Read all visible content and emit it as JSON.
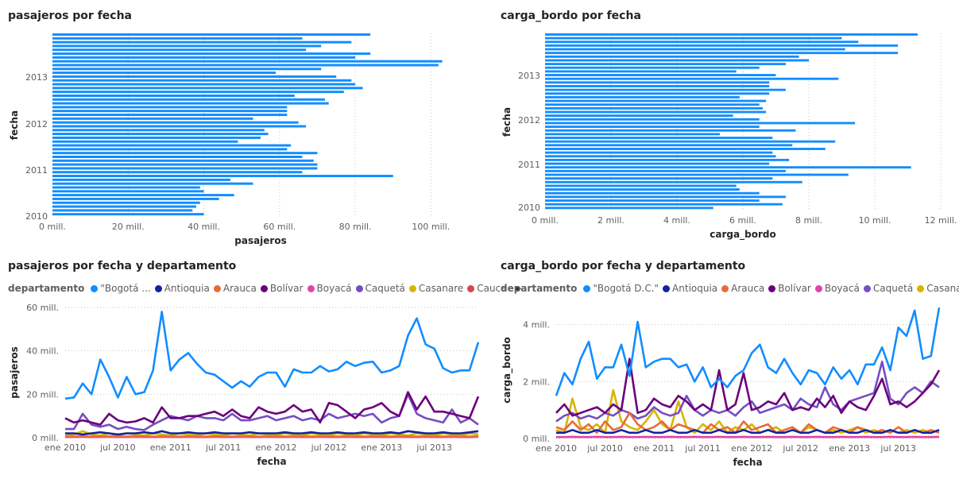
{
  "chart_data": [
    {
      "type": "bar",
      "title": "pasajeros por fecha",
      "xlabel": "pasajeros",
      "ylabel": "fecha",
      "xlim": [
        0,
        110
      ],
      "x_ticks": [
        0,
        20,
        40,
        60,
        80,
        100
      ],
      "x_tick_labels": [
        "0 mill.",
        "20 mill.",
        "40 mill.",
        "60 mill.",
        "80 mill.",
        "100 mill."
      ],
      "y_tick_labels": [
        "2013",
        "2012",
        "2011",
        "2010"
      ],
      "grid": true,
      "values": [
        84,
        66,
        79,
        71,
        67,
        84,
        80,
        103,
        102,
        71,
        59,
        75,
        79,
        80,
        82,
        77,
        64,
        72,
        73,
        62,
        62,
        62,
        53,
        65,
        67,
        56,
        57,
        55,
        49,
        63,
        62,
        70,
        66,
        69,
        70,
        70,
        66,
        90,
        47,
        53,
        39,
        40,
        48,
        44,
        39,
        38,
        37,
        40
      ]
    },
    {
      "type": "bar",
      "title": "carga_bordo por fecha",
      "xlabel": "carga_bordo",
      "ylabel": "fecha",
      "xlim": [
        0,
        12
      ],
      "x_ticks": [
        0,
        2,
        4,
        6,
        8,
        10,
        12
      ],
      "x_tick_labels": [
        "0 mill.",
        "2 mill.",
        "4 mill.",
        "6 mill.",
        "8 mill.",
        "10 mill.",
        "12 mill."
      ],
      "y_tick_labels": [
        "2013",
        "2012",
        "2011",
        "2010"
      ],
      "grid": true,
      "values": [
        11.3,
        9.0,
        9.5,
        10.7,
        9.1,
        10.7,
        7.7,
        8.0,
        7.3,
        6.5,
        5.8,
        7.0,
        8.9,
        6.8,
        6.8,
        7.3,
        6.8,
        5.9,
        6.7,
        6.5,
        6.6,
        6.7,
        5.7,
        6.5,
        9.4,
        6.5,
        7.6,
        5.3,
        6.9,
        8.8,
        7.5,
        8.5,
        6.9,
        7.0,
        7.4,
        6.8,
        11.1,
        7.3,
        9.2,
        6.9,
        7.8,
        5.8,
        5.9,
        6.5,
        7.3,
        6.5,
        7.2,
        5.1
      ]
    },
    {
      "type": "line",
      "title": "pasajeros por fecha y departamento",
      "xlabel": "fecha",
      "ylabel": "pasajeros",
      "ylim": [
        0,
        60
      ],
      "y_ticks": [
        0,
        20,
        40,
        60
      ],
      "y_tick_labels": [
        "0 mill.",
        "20 mill.",
        "40 mill.",
        "60 mill."
      ],
      "x_tick_labels": [
        "ene 2010",
        "jul 2010",
        "ene 2011",
        "jul 2011",
        "ene 2012",
        "jul 2012",
        "ene 2013",
        "jul 2013"
      ],
      "legend_title": "departamento",
      "legend_items": [
        "\"Bogotá ...",
        "Antioquia",
        "Arauca",
        "Bolívar",
        "Boyacá",
        "Caquetá",
        "Casanare",
        "Cauca"
      ],
      "series": [
        {
          "name": "\"Bogotá D.C.\"",
          "color": "#118DFF",
          "values": [
            18,
            18.5,
            25,
            20,
            36,
            28,
            18.5,
            28,
            20,
            21,
            31,
            58,
            31,
            36,
            39,
            34,
            30,
            29,
            26,
            23,
            26,
            23.5,
            28,
            30,
            30,
            23.5,
            31.5,
            30,
            30,
            33,
            30.5,
            31.5,
            35,
            33,
            34.5,
            35,
            30,
            31,
            33,
            47,
            55,
            43,
            41,
            32,
            30,
            31,
            31,
            44
          ]
        },
        {
          "name": "Antioquia",
          "color": "#12239E",
          "values": [
            2,
            2,
            1.5,
            2,
            2.5,
            2,
            1.5,
            2,
            2,
            2.5,
            2,
            3,
            2,
            2,
            2.5,
            2,
            2,
            2.5,
            2,
            2,
            2,
            2.5,
            2,
            2,
            2,
            2.5,
            2,
            2,
            2.5,
            2,
            2,
            2.5,
            2,
            2,
            2.5,
            2,
            2,
            2.5,
            2,
            3,
            2.5,
            2,
            2,
            2.5,
            2,
            2,
            2.5,
            3
          ]
        },
        {
          "name": "Arauca",
          "color": "#E66C37",
          "values": [
            0.5,
            0.5,
            0.6,
            0.5,
            0.5,
            0.6,
            0.5,
            0.5,
            0.6,
            0.5,
            0.5,
            0.6,
            0.5,
            0.5,
            0.6,
            0.5,
            0.5,
            0.6,
            0.5,
            0.5,
            0.6,
            0.5,
            0.5,
            0.6,
            0.5,
            0.5,
            0.6,
            0.5,
            0.5,
            0.6,
            0.5,
            0.5,
            0.6,
            0.5,
            0.5,
            0.6,
            0.5,
            0.5,
            0.6,
            0.5,
            0.5,
            0.6,
            0.5,
            0.5,
            0.6,
            0.5,
            0.5,
            0.6
          ]
        },
        {
          "name": "Bolívar",
          "color": "#6B007B",
          "values": [
            9,
            7,
            8,
            7,
            6,
            11,
            8,
            7,
            7.5,
            9,
            7,
            14,
            9,
            9,
            10,
            10,
            11,
            12,
            10,
            13,
            10,
            9,
            14,
            12,
            11,
            12,
            15,
            12,
            13,
            7,
            16,
            15,
            12,
            9,
            13,
            14,
            16,
            12,
            10,
            21,
            13,
            19,
            12,
            12,
            11,
            10,
            9,
            19
          ]
        },
        {
          "name": "Boyacá",
          "color": "#E044A7",
          "values": [
            0.3,
            0.3,
            0.4,
            0.3,
            0.3,
            0.4,
            0.3,
            0.3,
            0.4,
            0.3,
            0.3,
            0.4,
            0.3,
            0.3,
            0.4,
            0.3,
            0.3,
            0.4,
            0.3,
            0.3,
            0.4,
            0.3,
            0.3,
            0.4,
            0.3,
            0.3,
            0.4,
            0.3,
            0.3,
            0.4,
            0.3,
            0.3,
            0.4,
            0.3,
            0.3,
            0.4,
            0.3,
            0.3,
            0.4,
            0.3,
            0.3,
            0.4,
            0.3,
            0.3,
            0.4,
            0.3,
            0.3,
            0.4
          ]
        },
        {
          "name": "Caquetá",
          "color": "#744EC2",
          "values": [
            4,
            4,
            11,
            6,
            5,
            6,
            4,
            5,
            4,
            3.5,
            6,
            8,
            10,
            9,
            8,
            10,
            9,
            9,
            8,
            11,
            8,
            8,
            9,
            10,
            8,
            9,
            10,
            8,
            9,
            8,
            11,
            9,
            10,
            11,
            10,
            11,
            7,
            9,
            10,
            20,
            11,
            9,
            8,
            7,
            13,
            7,
            9,
            6
          ]
        },
        {
          "name": "Casanare",
          "color": "#D9B300",
          "values": [
            1,
            1.5,
            3,
            1.5,
            1,
            2,
            1,
            2,
            1.5,
            1,
            2,
            1.5,
            1,
            2,
            1.5,
            1,
            2,
            1.5,
            1,
            2,
            1.5,
            1,
            2,
            1.5,
            1,
            2,
            1.5,
            1,
            2,
            1.5,
            1,
            2,
            1.5,
            1,
            2,
            1.5,
            1,
            2,
            1.5,
            1,
            2,
            1.5,
            1,
            2,
            1.5,
            1,
            2,
            1.5
          ]
        },
        {
          "name": "Cauca",
          "color": "#D64550",
          "values": [
            0.4,
            0.4,
            0.5,
            0.4,
            0.4,
            0.5,
            0.4,
            0.4,
            0.5,
            0.4,
            0.4,
            0.5,
            0.4,
            0.4,
            0.5,
            0.4,
            0.4,
            0.5,
            0.4,
            0.4,
            0.5,
            0.4,
            0.4,
            0.5,
            0.4,
            0.4,
            0.5,
            0.4,
            0.4,
            0.5,
            0.4,
            0.4,
            0.5,
            0.4,
            0.4,
            0.5,
            0.4,
            0.4,
            0.5,
            0.4,
            0.4,
            0.5,
            0.4,
            0.4,
            0.5,
            0.4,
            0.4,
            0.5
          ]
        }
      ]
    },
    {
      "type": "line",
      "title": "carga_bordo por fecha y departamento",
      "xlabel": "fecha",
      "ylabel": "carga_bordo",
      "ylim": [
        0,
        4.8
      ],
      "y_ticks": [
        0,
        2,
        4
      ],
      "y_tick_labels": [
        "0 mill.",
        "2 mill.",
        "4 mill."
      ],
      "x_tick_labels": [
        "ene 2010",
        "jul 2010",
        "ene 2011",
        "jul 2011",
        "ene 2012",
        "jul 2012",
        "ene 2013",
        "jul 2013"
      ],
      "legend_title": "departamento",
      "legend_items": [
        "\"Bogotá D.C.\"",
        "Antioquia",
        "Arauca",
        "Bolívar",
        "Boyacá",
        "Caquetá",
        "Casanare"
      ],
      "series": [
        {
          "name": "\"Bogotá D.C.\"",
          "color": "#118DFF",
          "values": [
            1.5,
            2.3,
            1.9,
            2.8,
            3.4,
            2.1,
            2.5,
            2.5,
            3.3,
            2.2,
            4.1,
            2.5,
            2.7,
            2.8,
            2.8,
            2.5,
            2.6,
            2.0,
            2.5,
            1.8,
            2.1,
            1.8,
            2.2,
            2.4,
            3.0,
            3.3,
            2.5,
            2.3,
            2.8,
            2.3,
            1.9,
            2.4,
            2.3,
            1.9,
            2.5,
            2.1,
            2.4,
            1.9,
            2.6,
            2.6,
            3.2,
            2.4,
            3.9,
            3.6,
            4.5,
            2.8,
            2.9,
            4.6
          ]
        },
        {
          "name": "Antioquia",
          "color": "#12239E",
          "values": [
            0.2,
            0.2,
            0.3,
            0.2,
            0.2,
            0.3,
            0.2,
            0.2,
            0.3,
            0.2,
            0.2,
            0.3,
            0.2,
            0.2,
            0.3,
            0.2,
            0.2,
            0.3,
            0.2,
            0.2,
            0.3,
            0.2,
            0.2,
            0.3,
            0.2,
            0.2,
            0.3,
            0.2,
            0.2,
            0.3,
            0.2,
            0.2,
            0.3,
            0.2,
            0.2,
            0.3,
            0.2,
            0.2,
            0.3,
            0.2,
            0.2,
            0.3,
            0.2,
            0.2,
            0.3,
            0.2,
            0.2,
            0.3
          ]
        },
        {
          "name": "Arauca",
          "color": "#E66C37",
          "values": [
            0.4,
            0.3,
            0.6,
            0.3,
            0.5,
            0.2,
            0.6,
            0.3,
            0.4,
            0.9,
            0.5,
            0.3,
            0.4,
            0.6,
            0.3,
            0.5,
            0.4,
            0.3,
            0.2,
            0.5,
            0.3,
            0.4,
            0.2,
            0.6,
            0.3,
            0.4,
            0.5,
            0.2,
            0.3,
            0.4,
            0.2,
            0.5,
            0.3,
            0.2,
            0.4,
            0.3,
            0.2,
            0.4,
            0.3,
            0.2,
            0.3,
            0.2,
            0.4,
            0.2,
            0.3,
            0.2,
            0.3,
            0.2
          ]
        },
        {
          "name": "Bolívar",
          "color": "#6B007B",
          "values": [
            0.9,
            1.2,
            0.8,
            0.9,
            1.0,
            1.1,
            0.9,
            1.2,
            1.0,
            2.8,
            0.9,
            1.0,
            1.4,
            1.2,
            1.1,
            1.5,
            1.3,
            1.0,
            1.2,
            1.0,
            2.4,
            1.0,
            1.2,
            2.3,
            1.0,
            1.1,
            1.3,
            1.2,
            1.6,
            1.0,
            1.1,
            1.0,
            1.4,
            1.1,
            1.5,
            0.9,
            1.3,
            1.1,
            1.0,
            1.5,
            2.1,
            1.2,
            1.3,
            1.1,
            1.3,
            1.6,
            1.9,
            2.4
          ]
        },
        {
          "name": "Boyacá",
          "color": "#E044A7",
          "values": [
            0.05,
            0.05,
            0.06,
            0.05,
            0.05,
            0.06,
            0.05,
            0.05,
            0.06,
            0.05,
            0.05,
            0.06,
            0.05,
            0.05,
            0.06,
            0.05,
            0.05,
            0.06,
            0.05,
            0.05,
            0.06,
            0.05,
            0.05,
            0.06,
            0.05,
            0.05,
            0.06,
            0.05,
            0.05,
            0.06,
            0.05,
            0.05,
            0.06,
            0.05,
            0.05,
            0.06,
            0.05,
            0.05,
            0.06,
            0.05,
            0.05,
            0.06,
            0.05,
            0.05,
            0.06,
            0.05,
            0.05,
            0.06
          ]
        },
        {
          "name": "Caquetá",
          "color": "#744EC2",
          "values": [
            0.6,
            0.8,
            0.9,
            0.7,
            0.8,
            0.7,
            0.9,
            0.8,
            1.0,
            0.9,
            0.7,
            0.8,
            1.1,
            0.9,
            0.8,
            0.9,
            1.5,
            1.0,
            0.8,
            1.0,
            0.9,
            1.0,
            0.8,
            1.1,
            1.3,
            0.9,
            1.0,
            1.1,
            1.2,
            1.0,
            1.4,
            1.2,
            1.1,
            1.8,
            1.2,
            1.0,
            1.3,
            1.4,
            1.5,
            1.6,
            2.7,
            1.4,
            1.2,
            1.6,
            1.8,
            1.6,
            2.0,
            1.8
          ]
        },
        {
          "name": "Casanare",
          "color": "#D9B300",
          "values": [
            0.3,
            0.2,
            1.4,
            0.4,
            0.3,
            0.5,
            0.2,
            1.7,
            0.6,
            0.4,
            0.3,
            0.6,
            1.0,
            0.5,
            0.3,
            1.3,
            0.4,
            0.2,
            0.5,
            0.3,
            0.6,
            0.2,
            0.4,
            0.3,
            0.5,
            0.2,
            0.3,
            0.4,
            0.2,
            0.3,
            0.2,
            0.4,
            0.3,
            0.2,
            0.3,
            0.2,
            0.3,
            0.4,
            0.2,
            0.3,
            0.2,
            0.3,
            0.2,
            0.3,
            0.2,
            0.3,
            0.2,
            0.3
          ]
        }
      ]
    }
  ]
}
